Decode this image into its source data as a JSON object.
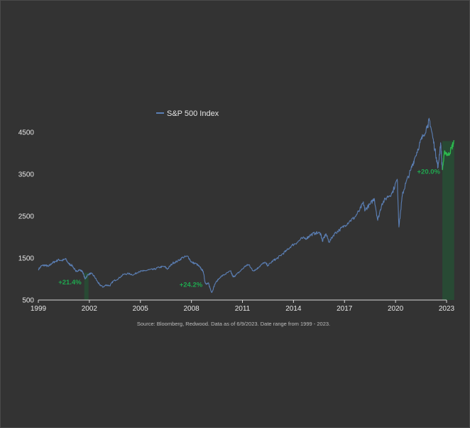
{
  "chart_data": {
    "type": "line",
    "title": "",
    "xlabel": "",
    "ylabel": "",
    "xlim": [
      1999,
      2023
    ],
    "ylim": [
      500,
      4500
    ],
    "x_ticks": [
      "1999",
      "2002",
      "2005",
      "2008",
      "2011",
      "2014",
      "2017",
      "2020",
      "2023"
    ],
    "y_ticks": [
      "500",
      "1500",
      "2500",
      "3500",
      "4500"
    ],
    "legend": {
      "position": "top-center",
      "entries": [
        "S&P 500 Index"
      ]
    },
    "series": [
      {
        "name": "S&P 500 Index",
        "color": "#5b7fb5",
        "points": [
          [
            1999.0,
            1230
          ],
          [
            1999.2,
            1320
          ],
          [
            1999.4,
            1330
          ],
          [
            1999.6,
            1300
          ],
          [
            1999.8,
            1380
          ],
          [
            2000.0,
            1420
          ],
          [
            2000.2,
            1460
          ],
          [
            2000.4,
            1440
          ],
          [
            2000.6,
            1480
          ],
          [
            2000.8,
            1360
          ],
          [
            2001.0,
            1320
          ],
          [
            2001.2,
            1180
          ],
          [
            2001.4,
            1220
          ],
          [
            2001.6,
            1180
          ],
          [
            2001.75,
            1000
          ],
          [
            2001.9,
            1100
          ],
          [
            2002.1,
            1140
          ],
          [
            2002.3,
            1060
          ],
          [
            2002.5,
            920
          ],
          [
            2002.6,
            870
          ],
          [
            2002.8,
            810
          ],
          [
            2003.0,
            860
          ],
          [
            2003.2,
            840
          ],
          [
            2003.4,
            950
          ],
          [
            2003.7,
            1010
          ],
          [
            2004.0,
            1110
          ],
          [
            2004.3,
            1130
          ],
          [
            2004.6,
            1100
          ],
          [
            2004.9,
            1180
          ],
          [
            2005.2,
            1190
          ],
          [
            2005.5,
            1220
          ],
          [
            2005.8,
            1230
          ],
          [
            2006.1,
            1280
          ],
          [
            2006.4,
            1300
          ],
          [
            2006.6,
            1240
          ],
          [
            2006.9,
            1380
          ],
          [
            2007.2,
            1430
          ],
          [
            2007.5,
            1520
          ],
          [
            2007.8,
            1540
          ],
          [
            2008.0,
            1400
          ],
          [
            2008.3,
            1360
          ],
          [
            2008.5,
            1280
          ],
          [
            2008.7,
            1180
          ],
          [
            2008.8,
            920
          ],
          [
            2008.9,
            880
          ],
          [
            2009.0,
            900
          ],
          [
            2009.1,
            780
          ],
          [
            2009.2,
            680
          ],
          [
            2009.4,
            900
          ],
          [
            2009.7,
            1050
          ],
          [
            2010.0,
            1120
          ],
          [
            2010.3,
            1190
          ],
          [
            2010.45,
            1050
          ],
          [
            2010.6,
            1090
          ],
          [
            2010.9,
            1200
          ],
          [
            2011.2,
            1320
          ],
          [
            2011.4,
            1340
          ],
          [
            2011.6,
            1200
          ],
          [
            2011.8,
            1230
          ],
          [
            2012.0,
            1300
          ],
          [
            2012.3,
            1400
          ],
          [
            2012.5,
            1320
          ],
          [
            2012.8,
            1440
          ],
          [
            2013.0,
            1480
          ],
          [
            2013.3,
            1580
          ],
          [
            2013.6,
            1680
          ],
          [
            2013.9,
            1800
          ],
          [
            2014.2,
            1870
          ],
          [
            2014.5,
            1970
          ],
          [
            2014.8,
            1980
          ],
          [
            2015.0,
            2050
          ],
          [
            2015.3,
            2100
          ],
          [
            2015.6,
            2090
          ],
          [
            2015.7,
            1900
          ],
          [
            2015.9,
            2080
          ],
          [
            2016.1,
            1880
          ],
          [
            2016.4,
            2080
          ],
          [
            2016.7,
            2170
          ],
          [
            2017.0,
            2270
          ],
          [
            2017.3,
            2380
          ],
          [
            2017.6,
            2470
          ],
          [
            2017.9,
            2650
          ],
          [
            2018.1,
            2820
          ],
          [
            2018.2,
            2650
          ],
          [
            2018.5,
            2780
          ],
          [
            2018.75,
            2920
          ],
          [
            2018.95,
            2400
          ],
          [
            2019.2,
            2800
          ],
          [
            2019.5,
            2950
          ],
          [
            2019.8,
            3050
          ],
          [
            2020.1,
            3380
          ],
          [
            2020.2,
            2240
          ],
          [
            2020.4,
            3000
          ],
          [
            2020.6,
            3280
          ],
          [
            2020.9,
            3600
          ],
          [
            2021.1,
            3850
          ],
          [
            2021.4,
            4200
          ],
          [
            2021.6,
            4400
          ],
          [
            2021.9,
            4680
          ],
          [
            2022.0,
            4790
          ],
          [
            2022.2,
            4350
          ],
          [
            2022.4,
            3900
          ],
          [
            2022.5,
            3660
          ],
          [
            2022.65,
            4250
          ],
          [
            2022.75,
            3600
          ],
          [
            2022.9,
            4050
          ],
          [
            2023.1,
            3950
          ],
          [
            2023.3,
            4130
          ],
          [
            2023.45,
            4290
          ]
        ]
      }
    ],
    "annotations": [
      {
        "label": "+21.4%",
        "x_start": 2001.7,
        "x_end": 2001.95,
        "y_low": 940,
        "y_high": 1150
      },
      {
        "label": "+24.2%",
        "x": 2008.9,
        "y": 880
      },
      {
        "label": "+20.0%",
        "x_start": 2022.75,
        "x_end": 2023.45,
        "y_low": 3580,
        "y_high": 4290
      }
    ],
    "grid": false,
    "source": "Source: Bloomberg, Redwood. Data as of 6/9/2023. Date range from 1999 - 2023."
  },
  "colors": {
    "background": "#333333",
    "line": "#5b7fb5",
    "rally_line": "#2db84d",
    "rally_fill": "#284a34",
    "text": "#e6e6e6",
    "annotation": "#1fa84f"
  }
}
